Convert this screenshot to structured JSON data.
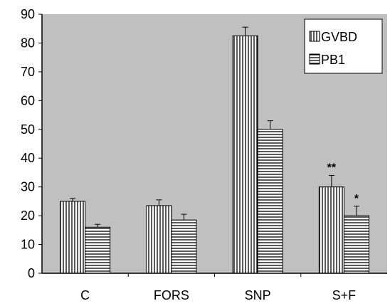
{
  "chart_data": {
    "type": "bar",
    "categories": [
      "C",
      "FORS",
      "SNP",
      "S+F"
    ],
    "series": [
      {
        "name": "GVBD",
        "values": [
          25,
          23.5,
          82.5,
          30
        ],
        "errors": [
          1.0,
          2.0,
          3.0,
          4.0
        ],
        "pattern": "vertical-stripes"
      },
      {
        "name": "PB1",
        "values": [
          16,
          18.5,
          50,
          20
        ],
        "errors": [
          1.0,
          2.0,
          3.0,
          3.3
        ],
        "pattern": "horizontal-stripes"
      }
    ],
    "ylim": [
      0,
      90
    ],
    "yticks": [
      0,
      10,
      20,
      30,
      40,
      50,
      60,
      70,
      80,
      90
    ],
    "title": "",
    "xlabel": "",
    "ylabel": "",
    "grid": false,
    "legend_position": "top-right",
    "annotations": [
      {
        "category": "S+F",
        "series": "GVBD",
        "text": "**"
      },
      {
        "category": "S+F",
        "series": "PB1",
        "text": "*"
      }
    ],
    "colors": {
      "plot_background": "#c0c0c0",
      "bar_fill": "#ffffff",
      "stroke": "#000000"
    }
  }
}
